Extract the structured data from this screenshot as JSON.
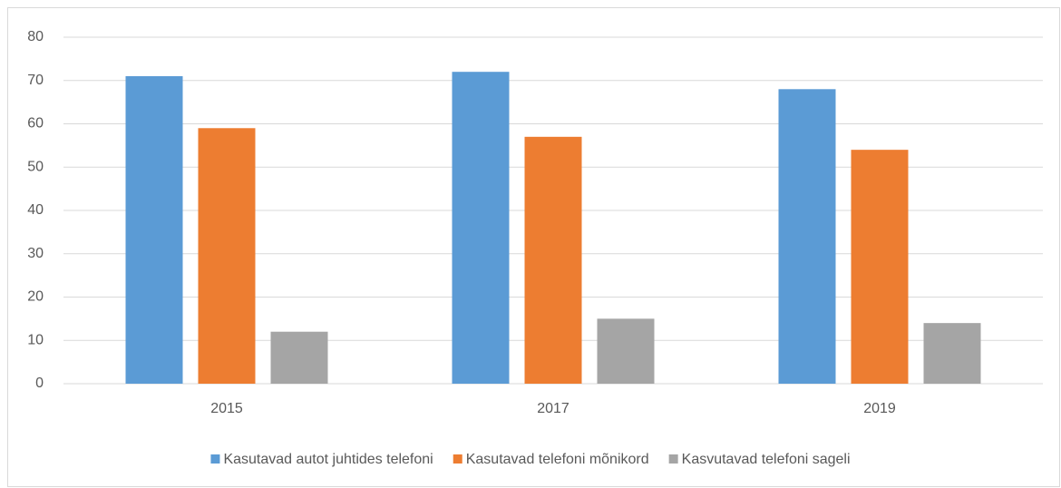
{
  "chart_data": {
    "type": "bar",
    "categories": [
      "2015",
      "2017",
      "2019"
    ],
    "series": [
      {
        "name": "Kasutavad autot juhtides telefoni",
        "color": "#5b9bd5",
        "values": [
          71,
          72,
          68
        ]
      },
      {
        "name": "Kasutavad telefoni mõnikord",
        "color": "#ed7d31",
        "values": [
          59,
          57,
          54
        ]
      },
      {
        "name": "Kasvutavad telefoni sageli",
        "color": "#a5a5a5",
        "values": [
          12,
          15,
          14
        ]
      }
    ],
    "ylim": [
      0,
      80
    ],
    "yticks": [
      0,
      10,
      20,
      30,
      40,
      50,
      60,
      70,
      80
    ],
    "grid": true,
    "legend": "bottom"
  }
}
